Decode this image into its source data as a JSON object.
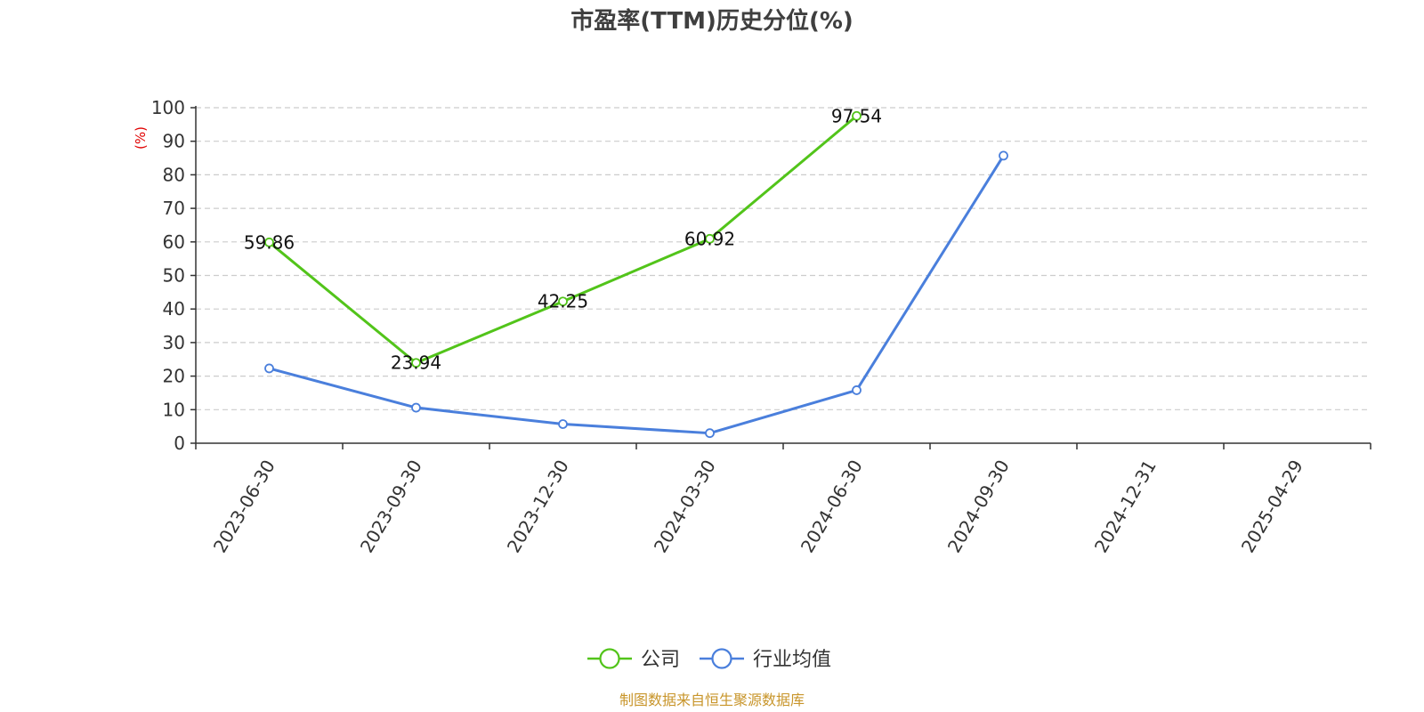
{
  "chart_data": {
    "type": "line",
    "title": "市盈率(TTM)历史分位(%)",
    "ylabel": "(%)",
    "xlabel": "",
    "categories": [
      "2023-06-30",
      "2023-09-30",
      "2023-12-30",
      "2024-03-30",
      "2024-06-30",
      "2024-09-30",
      "2024-12-31",
      "2025-04-29"
    ],
    "y_ticks": [
      "0",
      "10",
      "20",
      "30",
      "40",
      "50",
      "60",
      "70",
      "80",
      "90",
      "100"
    ],
    "ylim": [
      0,
      100
    ],
    "grid": true,
    "legend_position": "bottom-center",
    "series": [
      {
        "name": "公司",
        "color": "#52c41a",
        "values": [
          59.86,
          23.94,
          42.25,
          60.92,
          97.54,
          null,
          null,
          null
        ],
        "labels": [
          "59.86",
          "23.94",
          "42.25",
          "60.92",
          "97.54",
          "",
          "",
          ""
        ],
        "show_labels": true
      },
      {
        "name": "行业均值",
        "color": "#4a7fdc",
        "values": [
          22.3,
          10.6,
          5.7,
          3.0,
          15.8,
          85.7,
          null,
          null
        ],
        "labels": [
          "",
          "",
          "",
          "",
          "",
          "",
          "",
          ""
        ],
        "show_labels": false
      }
    ]
  },
  "footer": {
    "source": "制图数据来自恒生聚源数据库"
  }
}
